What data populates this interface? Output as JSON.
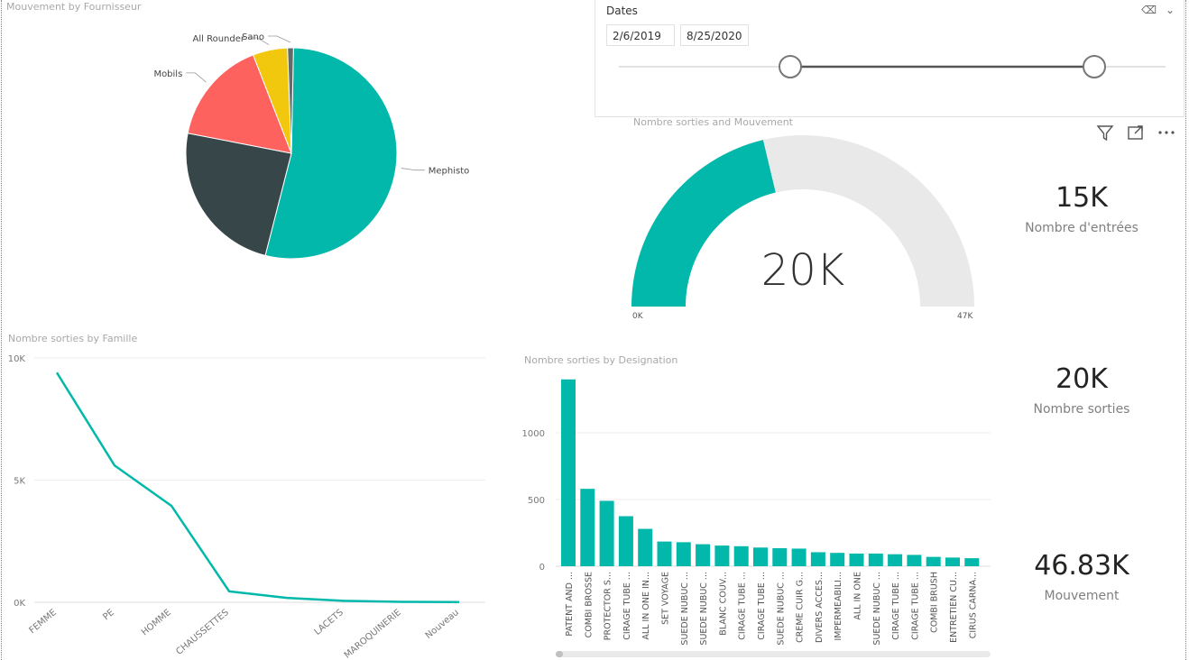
{
  "pie": {
    "title": "Mouvement by Fournisseur",
    "slices": [
      {
        "label": "Mephisto",
        "value": 53.5,
        "color": "#01B8AA"
      },
      {
        "label": "",
        "value": 24.0,
        "color": "#374649"
      },
      {
        "label": "Mobils",
        "value": 16.0,
        "color": "#FD625E"
      },
      {
        "label": "All Rounder",
        "value": 5.3,
        "color": "#F2C80F"
      },
      {
        "label": "Sano",
        "value": 0.9,
        "color": "#5F6B6D"
      }
    ]
  },
  "slicer": {
    "title": "Dates",
    "start": "2/6/2019",
    "end": "8/25/2020",
    "eraser_icon": "eraser-icon",
    "chevron_icon": "chevron-down-icon"
  },
  "visual_header": {
    "icons": [
      "filter-icon",
      "focus-mode-icon",
      "more-options-icon"
    ]
  },
  "gauge": {
    "title": "Nombre sorties and Mouvement",
    "value": 20,
    "display": "20K",
    "min_label": "0K",
    "max_label": "47K",
    "min": 0,
    "max": 47,
    "fill_color": "#01B8AA",
    "track_color": "#E9E9E9"
  },
  "cards": [
    {
      "value": "15K",
      "label": "Nombre d'entrées"
    },
    {
      "value": "20K",
      "label": "Nombre sorties"
    },
    {
      "value": "46.83K",
      "label": "Mouvement"
    }
  ],
  "chart_data": [
    {
      "type": "pie",
      "title": "Mouvement by Fournisseur",
      "categories": [
        "Mephisto",
        "",
        "Mobils",
        "All Rounder",
        "Sano"
      ],
      "values": [
        53.5,
        24.0,
        16.0,
        5.3,
        0.9
      ]
    },
    {
      "type": "line",
      "title": "Nombre sorties by Famille",
      "categories": [
        "FEMME",
        "PE",
        "HOMME",
        "CHAUSSETTES",
        "",
        "LACETS",
        "MAROQUINERIE",
        "Nouveau"
      ],
      "values": [
        9400,
        5600,
        3950,
        450,
        180,
        60,
        20,
        10
      ],
      "yticks": [
        "0K",
        "5K",
        "10K"
      ],
      "ylim": [
        0,
        10000
      ],
      "color": "#01B8AA"
    },
    {
      "type": "bar",
      "title": "Nombre sorties by Designation",
      "categories": [
        "PATENT AND ...",
        "COMBI BROSSE",
        "PROTECTOR S...",
        "CIRAGE TUBE ...",
        "ALL IN ONE IN...",
        "SET VOYAGE",
        "SUEDE NUBUC ...",
        "SUEDE NUBUC ...",
        "BLANC COUV...",
        "CIRAGE TUBE ...",
        "CIRAGE TUBE ...",
        "SUEDE NUBUC ...",
        "CREME CUIR G...",
        "DIVERS ACCES...",
        "IMPERMEABILI...",
        "ALL IN ONE",
        "SUEDE NUBUC ...",
        "CIRAGE TUBE ...",
        "CIRAGE TUBE ...",
        "COMBI BRUSH",
        "ENTRETIEN CU...",
        "CIRUS CARNA..."
      ],
      "values": [
        1400,
        580,
        490,
        375,
        280,
        185,
        180,
        165,
        155,
        150,
        140,
        135,
        132,
        105,
        100,
        95,
        95,
        90,
        85,
        70,
        65,
        60
      ],
      "yticks": [
        "0",
        "500",
        "1000"
      ],
      "ylim": [
        0,
        1500
      ],
      "color": "#01B8AA"
    }
  ]
}
